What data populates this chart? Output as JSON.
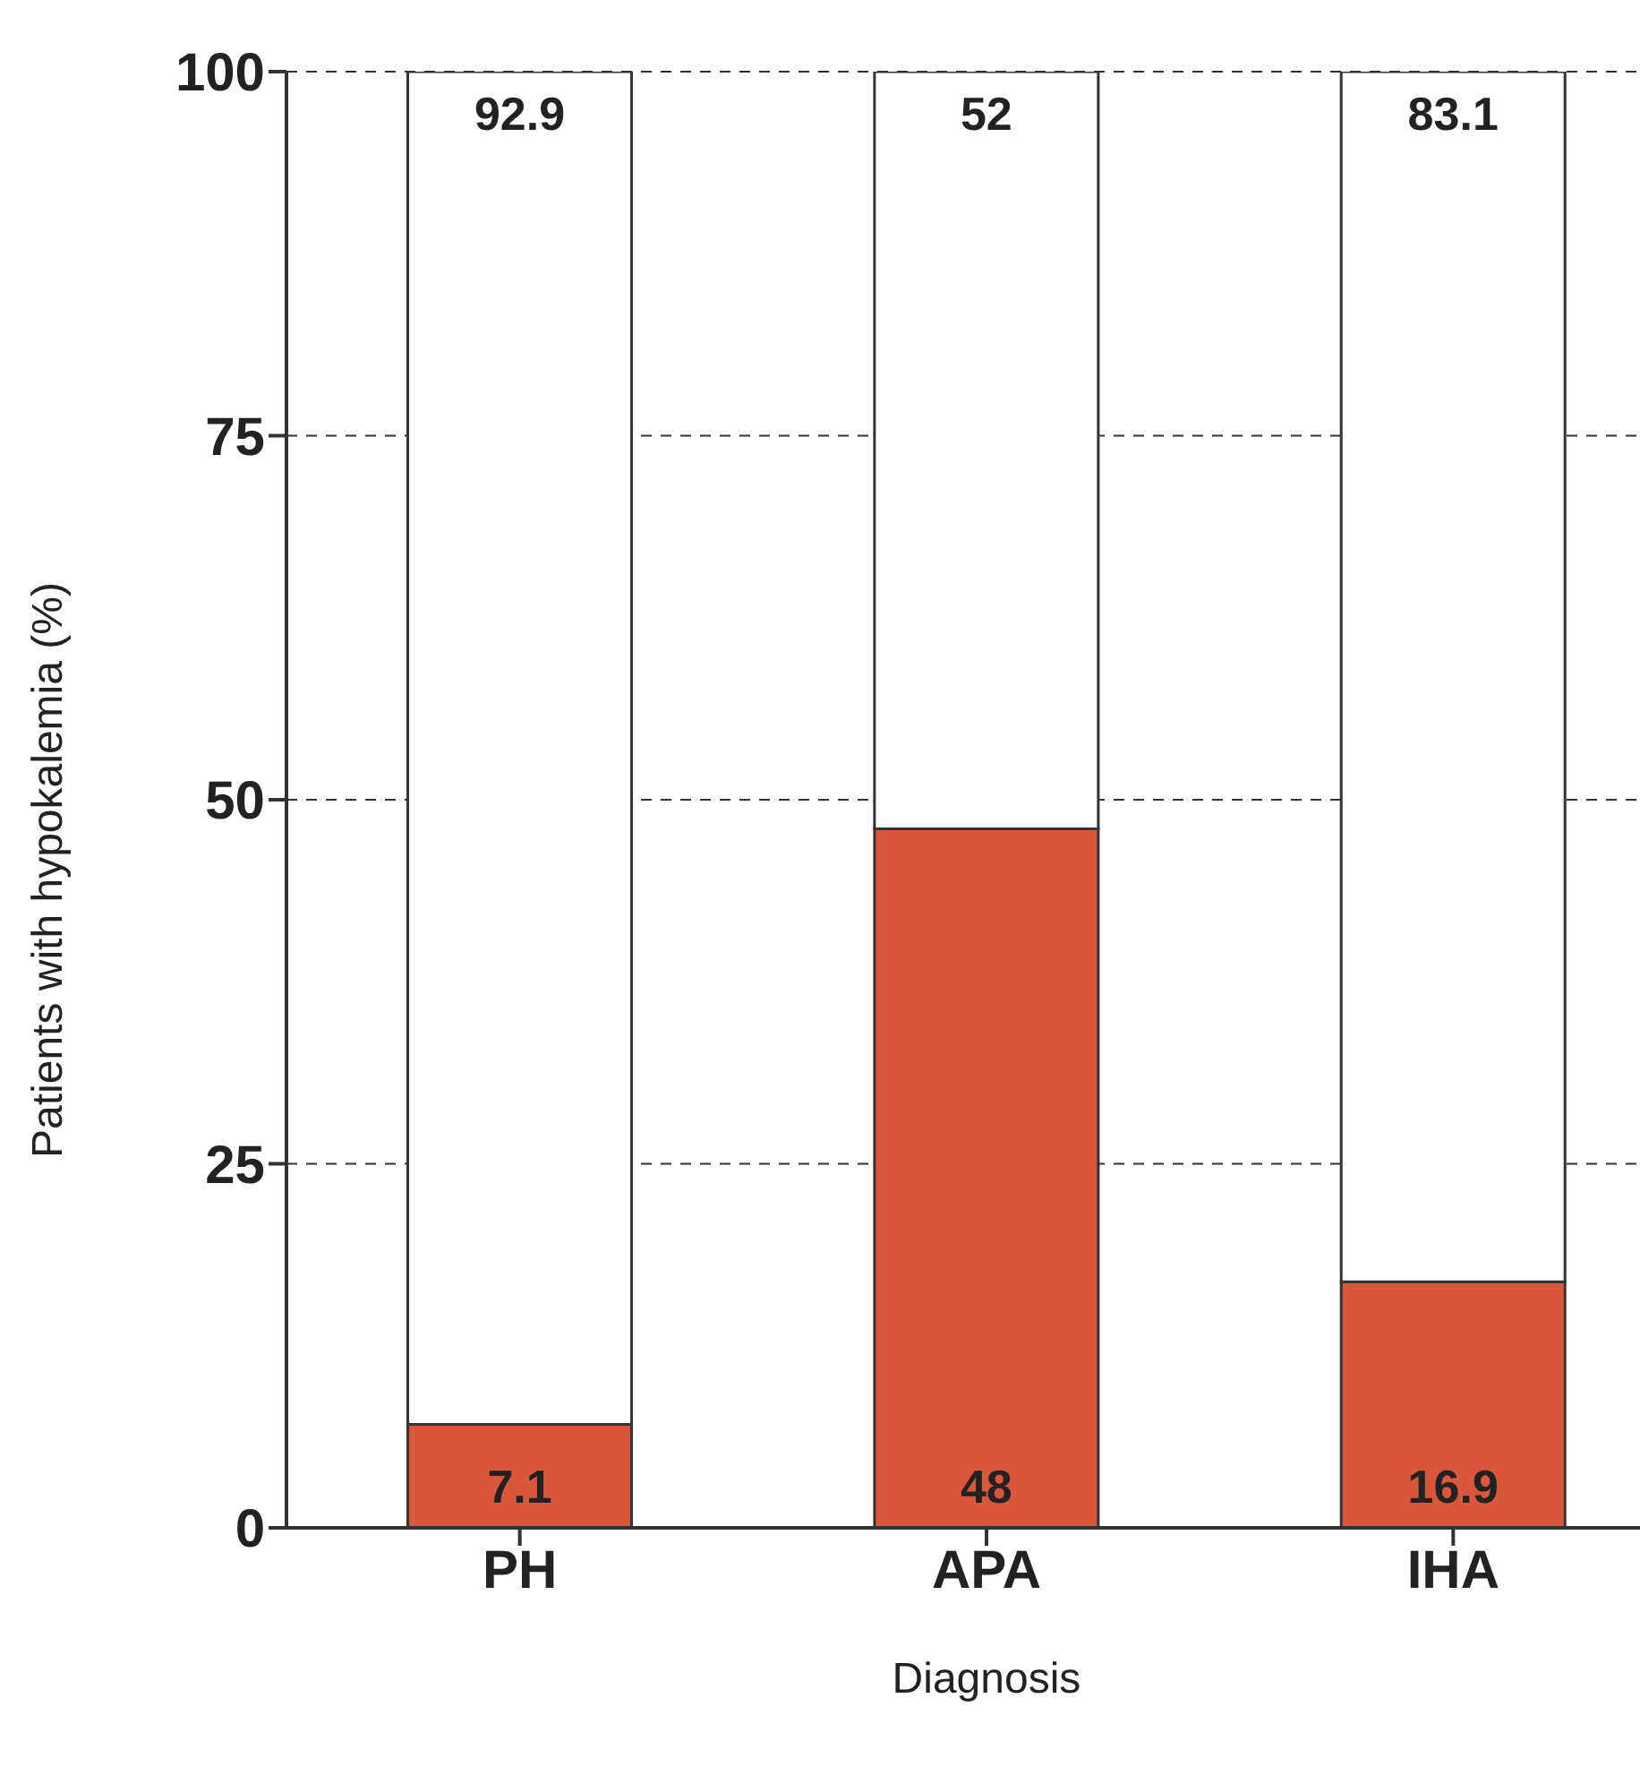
{
  "chart_data": {
    "type": "bar",
    "stacked": true,
    "xlabel": "Diagnosis",
    "ylabel": "Patients with hypokalemia (%)",
    "categories": [
      "PH",
      "APA",
      "IHA"
    ],
    "series": [
      {
        "color": "#d9573b",
        "values": [
          7.1,
          48,
          16.9
        ]
      },
      {
        "color": "#ffffff",
        "values": [
          92.9,
          52,
          83.1
        ]
      }
    ],
    "ylim": [
      0,
      100
    ],
    "yticks": [
      0,
      25,
      50,
      75,
      100
    ],
    "grid": "y",
    "data_labels": true
  }
}
